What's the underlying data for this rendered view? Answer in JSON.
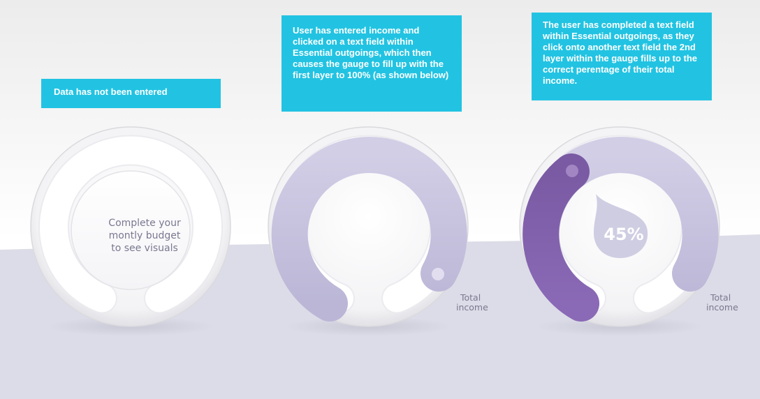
{
  "callouts": [
    {
      "text": "Data has not been entered"
    },
    {
      "text": "User has entered income and clicked on a text field within Essential outgoings, which then causes the gauge to fill up with the first layer to 100% (as shown below)"
    },
    {
      "text": "The user has completed a text field within Essential outgoings, as they click onto another text field the 2nd layer within the gauge fills up to the correct perentage of their total income."
    }
  ],
  "gauges": [
    {
      "message_lines": [
        "Complete your",
        "montly budget",
        "to see visuals"
      ]
    },
    {
      "income_label_lines": [
        "Total",
        "income"
      ],
      "first_layer_fill": 1.0
    },
    {
      "income_label_lines": [
        "Total",
        "income"
      ],
      "first_layer_fill": 1.0,
      "second_layer_percent": 45,
      "percent_label": "45%"
    }
  ],
  "colors": {
    "callout_bg": "#22c3e2",
    "first_layer": "#c8c4df",
    "second_layer": "#7d5aa5",
    "background_wave": "#d9d9e6",
    "label_text": "#7a7890"
  }
}
